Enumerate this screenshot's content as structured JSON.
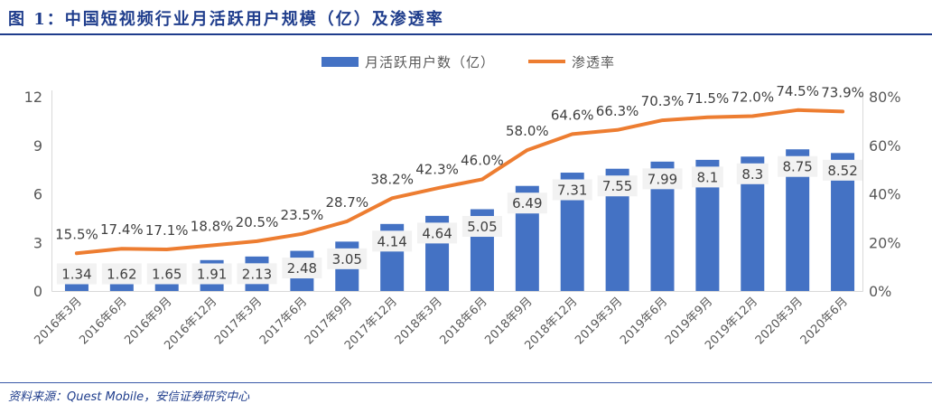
{
  "source": "资料来源：Quest Mobile，安信证券研究中心",
  "chart_data": {
    "type": "bar",
    "title": "图 1：中国短视频行业月活跃用户规模（亿）及渗透率",
    "categories": [
      "2016年3月",
      "2016年6月",
      "2016年9月",
      "2016年12月",
      "2017年3月",
      "2017年6月",
      "2017年9月",
      "2017年12月",
      "2018年3月",
      "2018年6月",
      "2018年9月",
      "2018年12月",
      "2019年3月",
      "2019年6月",
      "2019年9月",
      "2019年12月",
      "2020年3月",
      "2020年6月"
    ],
    "series": [
      {
        "name": "月活跃用户数（亿）",
        "type": "bar",
        "axis": "left",
        "color": "#4472c4",
        "values": [
          1.34,
          1.62,
          1.65,
          1.91,
          2.13,
          2.48,
          3.05,
          4.14,
          4.64,
          5.05,
          6.49,
          7.31,
          7.55,
          7.99,
          8.1,
          8.3,
          8.75,
          8.52
        ]
      },
      {
        "name": "渗透率",
        "type": "line",
        "axis": "right",
        "color": "#ed7d31",
        "values": [
          15.5,
          17.4,
          17.1,
          18.8,
          20.5,
          23.5,
          28.7,
          38.2,
          42.3,
          46.0,
          58.0,
          64.6,
          66.3,
          70.3,
          71.5,
          72.0,
          74.5,
          73.9
        ]
      }
    ],
    "y_left": {
      "range": [
        0,
        12
      ],
      "ticks": [
        0,
        3,
        6,
        9,
        12
      ]
    },
    "y_right": {
      "range": [
        0,
        80
      ],
      "ticks": [
        0,
        20,
        40,
        60,
        80
      ]
    },
    "legend": "top-center",
    "grid": false
  }
}
